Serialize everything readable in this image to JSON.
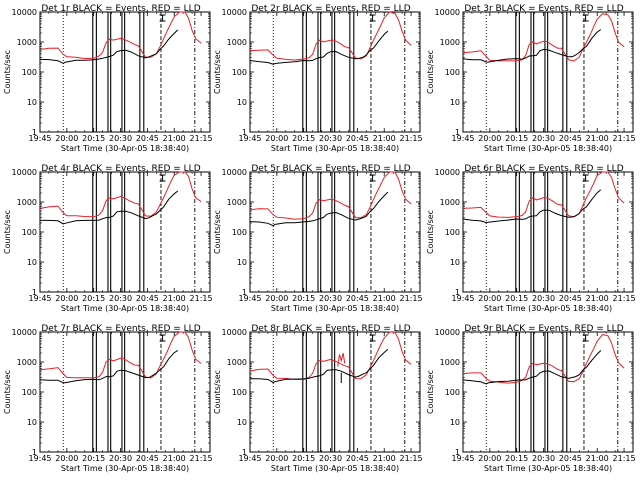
{
  "colors": {
    "events": "#000000",
    "lld": "#e8202a",
    "axis": "#000000",
    "background": "#ffffff"
  },
  "tick_labels_y": [
    "1",
    "10",
    "100",
    "1000",
    "10000"
  ],
  "tick_labels_x": [
    "19:45",
    "20:00",
    "20:15",
    "20:30",
    "20:45",
    "21:00",
    "21:15"
  ],
  "chart_data": [
    {
      "type": "line",
      "title": "Det 1r BLACK = Events, RED = LLD",
      "xlabel": "Start Time (30-Apr-05 18:38:40)",
      "ylabel": "Counts/sec",
      "x_ticks": [
        "19:45",
        "20:00",
        "20:15",
        "20:30",
        "20:45",
        "21:00",
        "21:15"
      ],
      "y_scale": "log",
      "ylim": [
        1,
        10000
      ],
      "xlim_min": [
        1185,
        1280
      ],
      "events_offset": 0.0,
      "lld_offset": 0.0,
      "jitter": 0
    },
    {
      "type": "line",
      "title": "Det 2r BLACK = Events, RED = LLD",
      "xlabel": "Start Time (30-Apr-05 18:38:40)",
      "ylabel": "Counts/sec",
      "x_ticks": [
        "19:45",
        "20:00",
        "20:15",
        "20:30",
        "20:45",
        "21:00",
        "21:15"
      ],
      "y_scale": "log",
      "ylim": [
        1,
        10000
      ],
      "xlim_min": [
        1185,
        1280
      ],
      "events_offset": -0.05,
      "lld_offset": -0.05,
      "jitter": 1
    },
    {
      "type": "line",
      "title": "Det 3r BLACK = Events, RED = LLD",
      "xlabel": "Start Time (30-Apr-05 18:38:40)",
      "ylabel": "Counts/sec",
      "x_ticks": [
        "19:45",
        "20:00",
        "20:15",
        "20:30",
        "20:45",
        "21:00",
        "21:15"
      ],
      "y_scale": "log",
      "ylim": [
        1,
        10000
      ],
      "xlim_min": [
        1185,
        1280
      ],
      "events_offset": 0.02,
      "lld_offset": -0.1,
      "jitter": 2
    },
    {
      "type": "line",
      "title": "Det 4r BLACK = Events, RED = LLD",
      "xlabel": "Start Time (30-Apr-05 18:38:40)",
      "ylabel": "Counts/sec",
      "x_ticks": [
        "19:45",
        "20:00",
        "20:15",
        "20:30",
        "20:45",
        "21:00",
        "21:15"
      ],
      "y_scale": "log",
      "ylim": [
        1,
        10000
      ],
      "xlim_min": [
        1185,
        1280
      ],
      "events_offset": -0.02,
      "lld_offset": 0.05,
      "jitter": 3
    },
    {
      "type": "line",
      "title": "Det 5r BLACK = Events, RED = LLD",
      "xlabel": "Start Time (30-Apr-05 18:38:40)",
      "ylabel": "Counts/sec",
      "x_ticks": [
        "19:45",
        "20:00",
        "20:15",
        "20:30",
        "20:45",
        "21:00",
        "21:15"
      ],
      "y_scale": "log",
      "ylim": [
        1,
        10000
      ],
      "xlim_min": [
        1185,
        1280
      ],
      "events_offset": -0.08,
      "lld_offset": -0.02,
      "jitter": 4
    },
    {
      "type": "line",
      "title": "Det 6r BLACK = Events, RED = LLD",
      "xlabel": "Start Time (30-Apr-05 18:38:40)",
      "ylabel": "Counts/sec",
      "x_ticks": [
        "19:45",
        "20:00",
        "20:15",
        "20:30",
        "20:45",
        "21:00",
        "21:15"
      ],
      "y_scale": "log",
      "ylim": [
        1,
        10000
      ],
      "xlim_min": [
        1185,
        1280
      ],
      "events_offset": 0.0,
      "lld_offset": 0.03,
      "jitter": 5
    },
    {
      "type": "line",
      "title": "Det 7r BLACK = Events, RED = LLD",
      "xlabel": "Start Time (30-Apr-05 18:38:40)",
      "ylabel": "Counts/sec",
      "x_ticks": [
        "19:45",
        "20:00",
        "20:15",
        "20:30",
        "20:45",
        "21:00",
        "21:15"
      ],
      "y_scale": "log",
      "ylim": [
        1,
        10000
      ],
      "xlim_min": [
        1185,
        1280
      ],
      "events_offset": 0.0,
      "lld_offset": 0.0,
      "jitter": 6
    },
    {
      "type": "line",
      "title": "Det 8r BLACK = Events, RED = LLD",
      "xlabel": "Start Time (30-Apr-05 18:38:40)",
      "ylabel": "Counts/sec",
      "x_ticks": [
        "19:45",
        "20:00",
        "20:15",
        "20:30",
        "20:45",
        "21:00",
        "21:15"
      ],
      "y_scale": "log",
      "ylim": [
        1,
        10000
      ],
      "xlim_min": [
        1185,
        1280
      ],
      "events_offset": 0.03,
      "lld_offset": -0.04,
      "jitter": 7,
      "spike": true
    },
    {
      "type": "line",
      "title": "Det 9r BLACK = Events, RED = LLD",
      "xlabel": "Start Time (30-Apr-05 18:38:40)",
      "ylabel": "Counts/sec",
      "x_ticks": [
        "19:45",
        "20:00",
        "20:15",
        "20:30",
        "20:45",
        "21:00",
        "21:15"
      ],
      "y_scale": "log",
      "ylim": [
        1,
        10000
      ],
      "xlim_min": [
        1185,
        1280
      ],
      "events_offset": -0.03,
      "lld_offset": -0.15,
      "jitter": 8
    }
  ]
}
